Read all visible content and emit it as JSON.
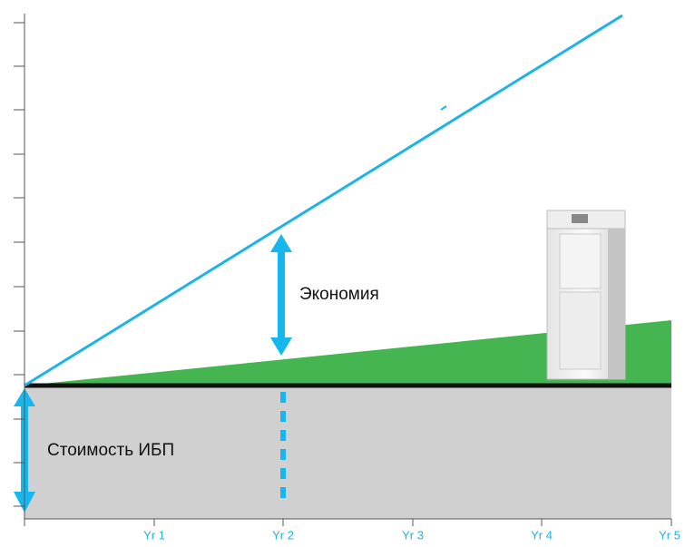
{
  "labels": {
    "savings": "Экономия",
    "ups_cost": "Стоимость ИБП"
  },
  "x_axis": {
    "labels": [
      "Yr 1",
      "Yr 2",
      "Yr 3",
      "Yr 4",
      "Yr 5"
    ]
  }
}
